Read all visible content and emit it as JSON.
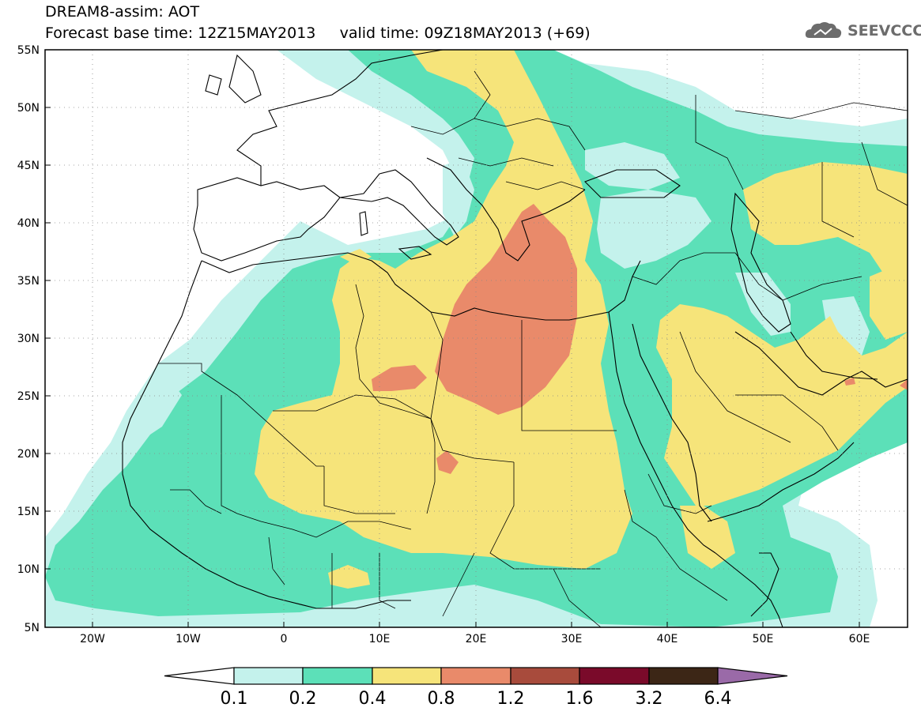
{
  "header": {
    "line1": "DREAM8-assim: AOT",
    "line2": "Forecast base time: 12Z15MAY2013     valid time: 09Z18MAY2013 (+69)"
  },
  "logo": {
    "text": "SEEVCCC",
    "icon": "cloud-icon"
  },
  "map": {
    "lon_range": [
      -25,
      65
    ],
    "lat_range": [
      5,
      55
    ],
    "lat_labels": [
      "55N",
      "50N",
      "45N",
      "40N",
      "35N",
      "30N",
      "25N",
      "20N",
      "15N",
      "10N",
      "5N"
    ],
    "lon_labels": [
      "20W",
      "10W",
      "0",
      "10E",
      "20E",
      "30E",
      "40E",
      "50E",
      "60E"
    ],
    "grid": "dotted"
  },
  "colorbar": {
    "labels": [
      "0.1",
      "0.2",
      "0.4",
      "0.8",
      "1.2",
      "1.6",
      "3.2",
      "6.4"
    ],
    "colors": [
      "#ffffff",
      "#c4f2ec",
      "#5ce0b8",
      "#f6e47a",
      "#e98a6a",
      "#a84b3c",
      "#7a0a2a",
      "#3c2616",
      "#9a6aa8"
    ]
  },
  "colors": {
    "c01": "#c4f2ec",
    "c02": "#5ce0b8",
    "c04": "#f6e47a",
    "c08": "#e98a6a",
    "land": "#ffffff",
    "border": "#000000"
  }
}
